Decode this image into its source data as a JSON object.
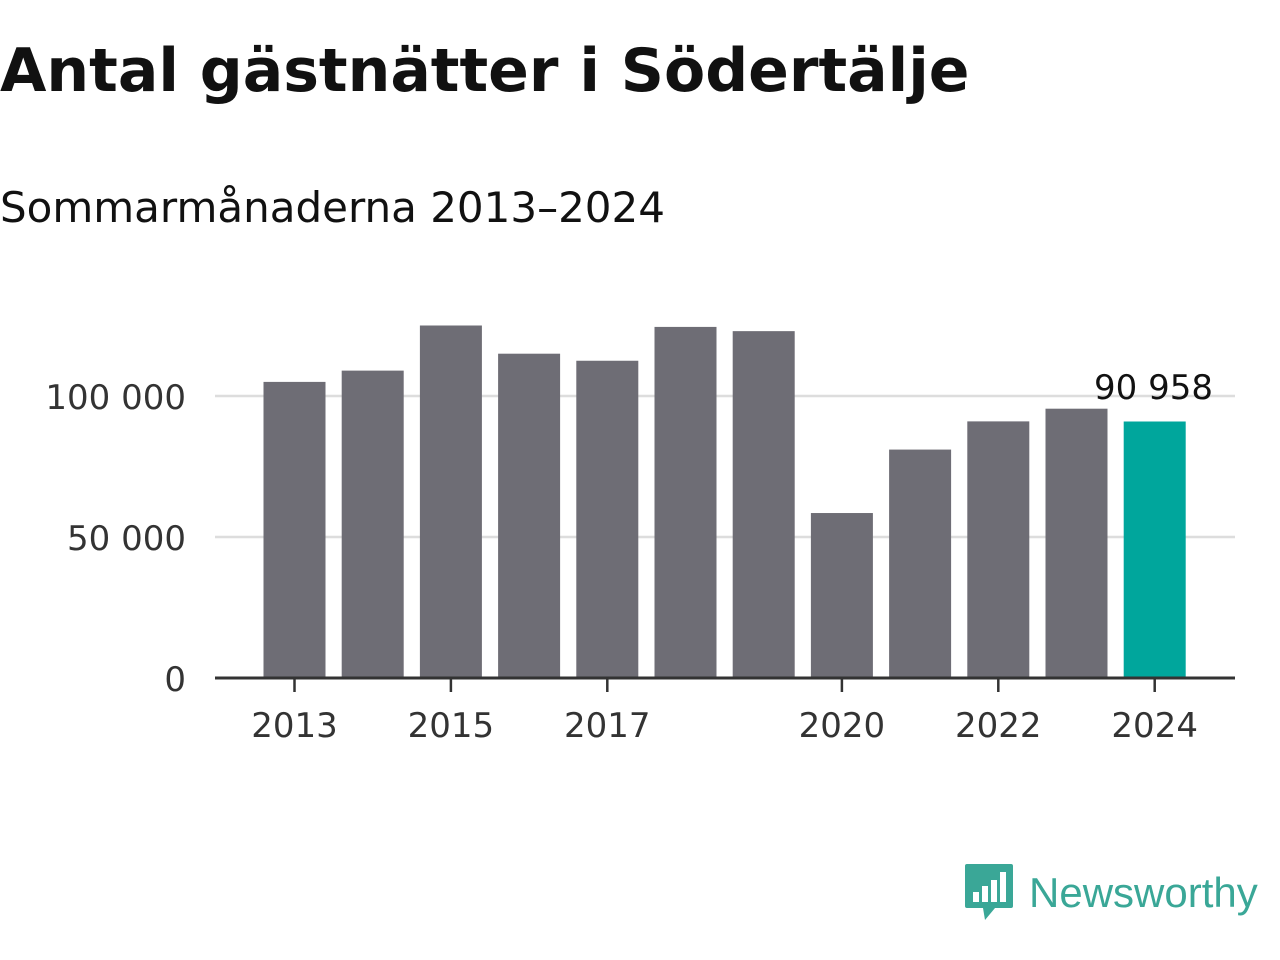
{
  "title": "Antal gästnätter i Södertälje",
  "subtitle": "Sommarmånaderna 2013–2024",
  "chart_data": {
    "type": "bar",
    "categories": [
      "2013",
      "2014",
      "2015",
      "2016",
      "2017",
      "2018",
      "2019",
      "2020",
      "2021",
      "2022",
      "2023",
      "2024"
    ],
    "values": [
      105000,
      109000,
      125000,
      115000,
      112500,
      124500,
      123000,
      58500,
      81000,
      91000,
      95500,
      90958
    ],
    "x_tick_labels": [
      "2013",
      "2015",
      "2017",
      "2020",
      "2022",
      "2024"
    ],
    "y_ticks": [
      0,
      50000,
      100000
    ],
    "y_tick_labels": [
      "0",
      "50 000",
      "100 000"
    ],
    "ylim": [
      0,
      130000
    ],
    "annotation": {
      "category": "2024",
      "text": "90 958"
    },
    "grid": true,
    "colors": {
      "bar": "#6e6d75",
      "highlight": "#00a69c",
      "grid": "#dddddd",
      "axis": "#333333",
      "text": "#333333"
    }
  },
  "brand": {
    "name": "Newsworthy",
    "icon": "newsworthy-logo-icon",
    "color": "#3aa797"
  }
}
